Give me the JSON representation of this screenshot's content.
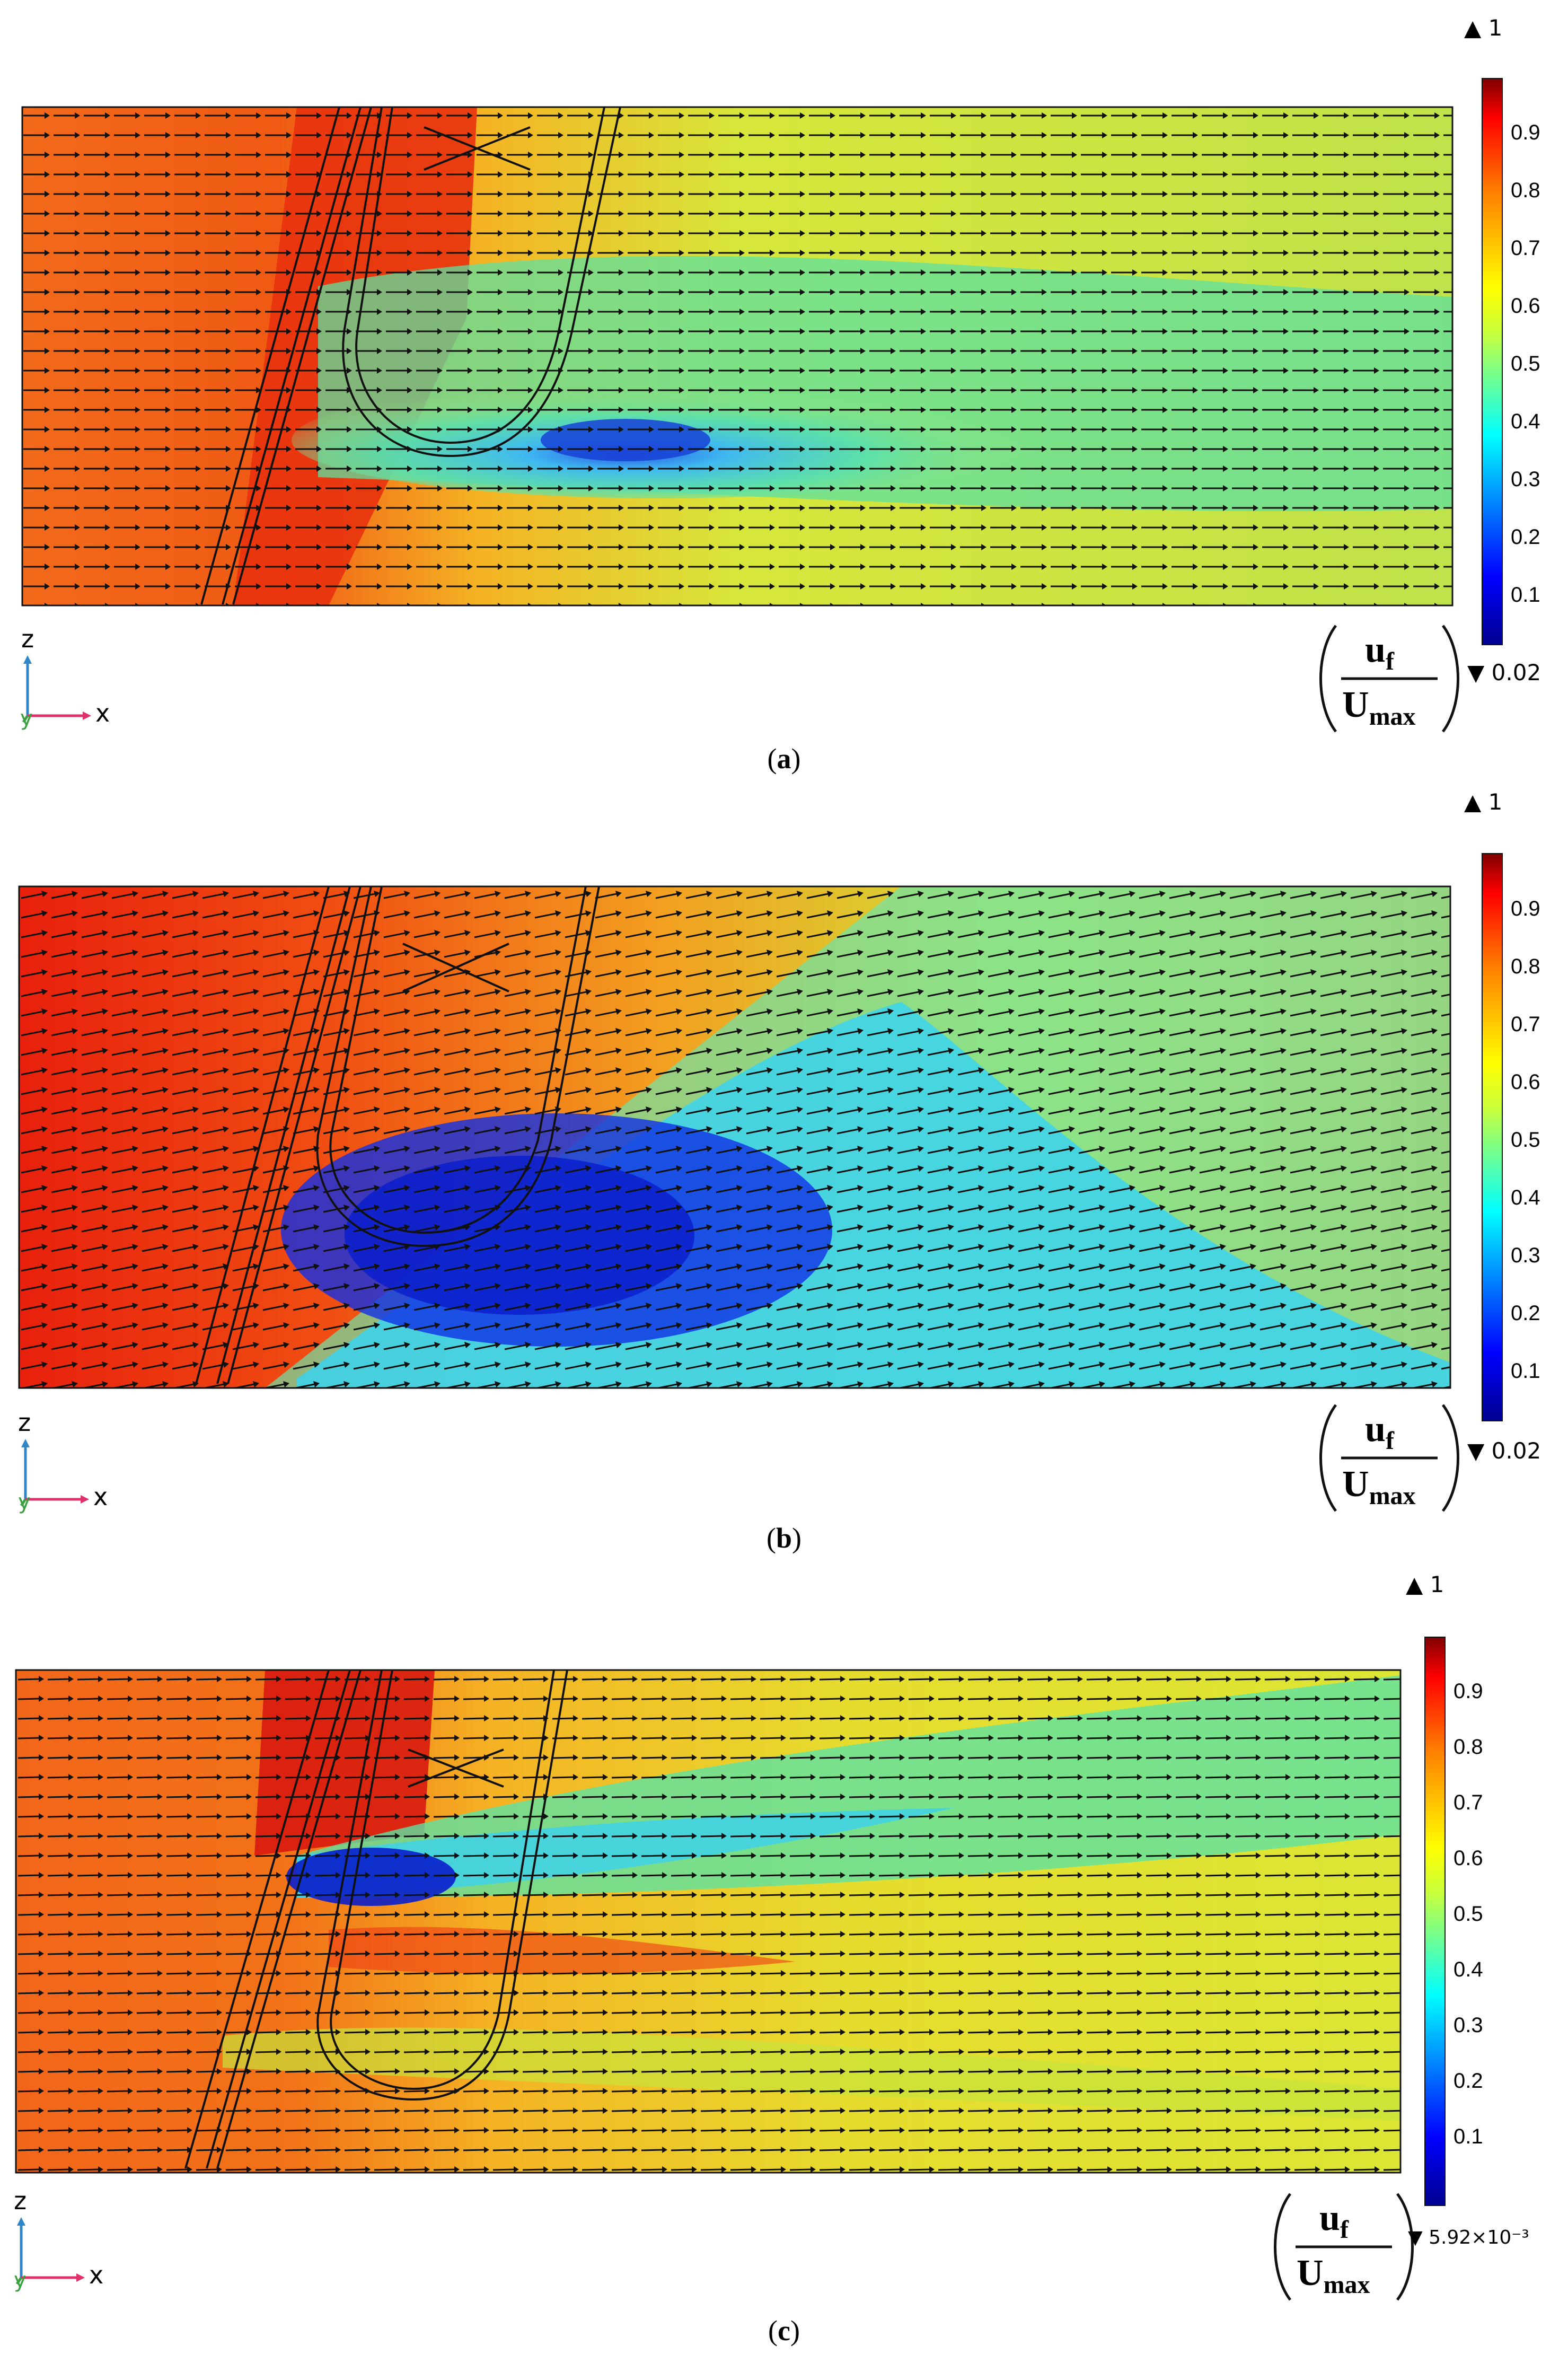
{
  "figure": {
    "panels": [
      {
        "id": "a",
        "caption_open": "(",
        "caption_letter": "a",
        "caption_close": ")",
        "colorbar": {
          "max_label": "▲ 1",
          "min_label": "▼ 0.02",
          "ticks": [
            "0.9",
            "0.8",
            "0.7",
            "0.6",
            "0.5",
            "0.4",
            "0.3",
            "0.2",
            "0.1"
          ]
        },
        "quantity": {
          "numerator_main": "u",
          "numerator_sub": "f",
          "denominator_main": "U",
          "denominator_sub": "max"
        },
        "axes": {
          "vertical": "z",
          "horizontal": "x",
          "depth": "y"
        }
      },
      {
        "id": "b",
        "caption_open": "(",
        "caption_letter": "b",
        "caption_close": ")",
        "colorbar": {
          "max_label": "▲ 1",
          "min_label": "▼ 0.02",
          "ticks": [
            "0.9",
            "0.8",
            "0.7",
            "0.6",
            "0.5",
            "0.4",
            "0.3",
            "0.2",
            "0.1"
          ]
        },
        "quantity": {
          "numerator_main": "u",
          "numerator_sub": "f",
          "denominator_main": "U",
          "denominator_sub": "max"
        },
        "axes": {
          "vertical": "z",
          "horizontal": "x",
          "depth": "y"
        }
      },
      {
        "id": "c",
        "caption_open": "(",
        "caption_letter": "c",
        "caption_close": ")",
        "colorbar": {
          "max_label": "▲ 1",
          "min_label": "▼ 5.92×10⁻³",
          "ticks": [
            "0.9",
            "0.8",
            "0.7",
            "0.6",
            "0.5",
            "0.4",
            "0.3",
            "0.2",
            "0.1"
          ]
        },
        "quantity": {
          "numerator_main": "u",
          "numerator_sub": "f",
          "denominator_main": "U",
          "denominator_sub": "max"
        },
        "axes": {
          "vertical": "z",
          "horizontal": "x",
          "depth": "y"
        }
      }
    ],
    "colormap": [
      "#00008f",
      "#0000ff",
      "#00ffff",
      "#ffff00",
      "#ff7f00",
      "#ff0000",
      "#7f0000"
    ]
  }
}
